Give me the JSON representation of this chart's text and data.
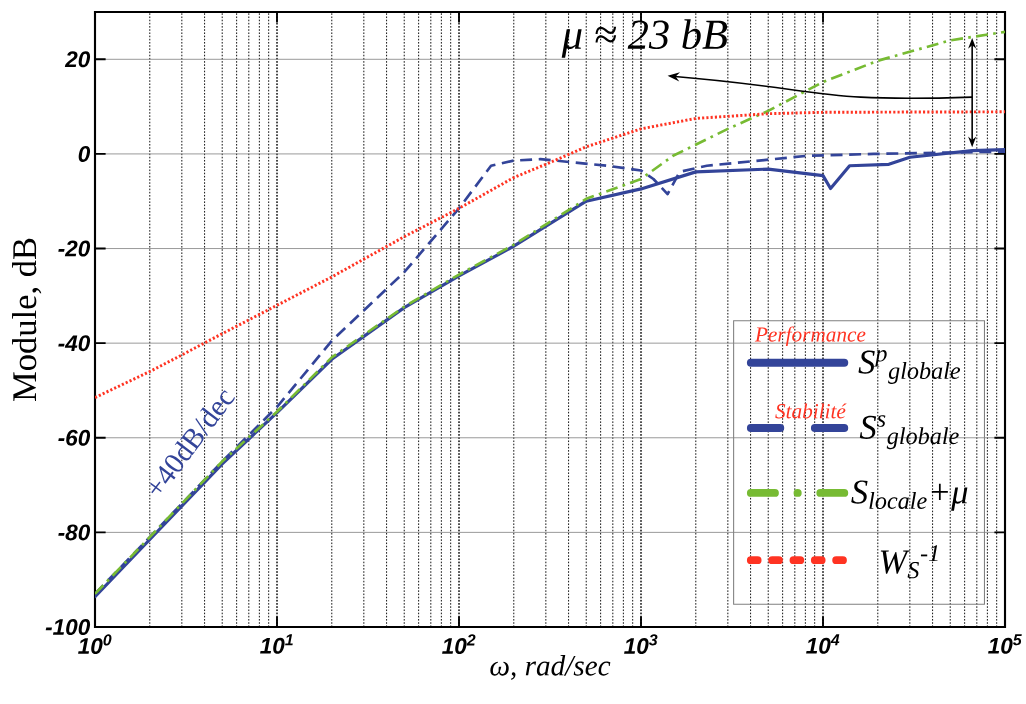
{
  "chart_data": {
    "type": "line",
    "xlabel": "ω, rad/sec",
    "ylabel": "Module, dB",
    "log": "x",
    "grid": true,
    "legend": "bottom right",
    "xlim": [
      1,
      100000
    ],
    "ylim": [
      -100,
      30
    ],
    "xticks": [
      {
        "value": 1,
        "label": "10$^{0}$"
      },
      {
        "value": 10,
        "label": "10$^{1}$"
      },
      {
        "value": 100,
        "label": "10$^{2}$"
      },
      {
        "value": 1000,
        "label": "10$^{3}$"
      },
      {
        "value": 10000,
        "label": "10$^{4}$"
      },
      {
        "value": 100000,
        "label": "10$^{5}$"
      }
    ],
    "yticks": [
      -100,
      -80,
      -60,
      -40,
      -20,
      0,
      20
    ],
    "annotations": [
      "μ ≈ 23 bB",
      "+40dB/dec",
      "Performance",
      "Stabilité"
    ],
    "series": [
      {
        "name": "S$^{p}$$_{globale}$",
        "color": "#334499",
        "line_style": "solid",
        "x": [
          1,
          2,
          5,
          10,
          20,
          50,
          100,
          200,
          500,
          1000,
          2000,
          5000,
          10000,
          11000,
          14000,
          23000,
          30000,
          66000,
          100000
        ],
        "values": [
          -93.6,
          -81.5,
          -65.5,
          -54.7,
          -43.4,
          -32.5,
          -25.8,
          -19.5,
          -10,
          -7.4,
          -3.8,
          -3.2,
          -4.6,
          -7.3,
          -2.5,
          -2.2,
          -0.7,
          0.7,
          0.9
        ]
      },
      {
        "name": "S$^{s}$$_{globale}$",
        "color": "#334499",
        "line_style": "dashed",
        "x": [
          1,
          2,
          5,
          10,
          20,
          50,
          100,
          150,
          200,
          280,
          650,
          1000,
          1170,
          1400,
          1630,
          2300,
          8200,
          19000,
          100000
        ],
        "values": [
          -93,
          -81,
          -65,
          -53.5,
          -39.5,
          -25,
          -11.5,
          -2.5,
          -1.4,
          -1.1,
          -2.5,
          -3.5,
          -5.3,
          -8.5,
          -3.8,
          -2.5,
          -0.4,
          0,
          0.5
        ]
      },
      {
        "name": "S$_{locale}$+μ",
        "color": "#77bb33",
        "line_style": "dashdot",
        "x": [
          1,
          2,
          5,
          10,
          20,
          50,
          100,
          200,
          500,
          1000,
          1500,
          3000,
          5000,
          10000,
          20000,
          50000,
          100000
        ],
        "values": [
          -93,
          -81,
          -65,
          -54.5,
          -43,
          -32.3,
          -25.5,
          -19.2,
          -9.5,
          -5.3,
          -0.4,
          5.3,
          9.1,
          15.2,
          19.7,
          24,
          25.8
        ]
      },
      {
        "name": "W$_{S}$$^{-1}$",
        "color": "#ff3322",
        "line_style": "dotted",
        "x": [
          1,
          2,
          3,
          5,
          10,
          20,
          50,
          100,
          200,
          300,
          500,
          1000,
          2000,
          5000,
          10000,
          100000
        ],
        "values": [
          -51.5,
          -46,
          -42.5,
          -38,
          -32,
          -26,
          -17.5,
          -11.5,
          -5,
          -2.2,
          1.5,
          5.3,
          7.5,
          8.5,
          8.8,
          8.9
        ]
      }
    ]
  }
}
